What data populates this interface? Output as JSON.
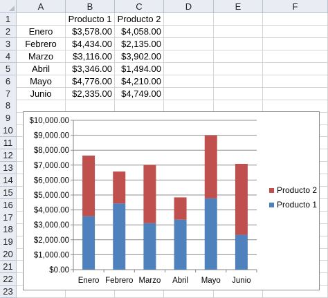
{
  "sheet": {
    "columns": [
      "A",
      "B",
      "C",
      "D",
      "E",
      "F"
    ],
    "rows": [
      "1",
      "2",
      "3",
      "4",
      "5",
      "6",
      "7",
      "8",
      "9",
      "10",
      "11",
      "12",
      "13",
      "14",
      "15",
      "16",
      "17",
      "18",
      "19",
      "20",
      "21",
      "22",
      "23"
    ],
    "header_row": [
      "",
      "Producto 1",
      "Producto 2"
    ],
    "data_rows": [
      [
        "Enero",
        "$3,578.00",
        "$4,058.00"
      ],
      [
        "Febrero",
        "$4,434.00",
        "$2,135.00"
      ],
      [
        "Marzo",
        "$3,116.00",
        "$3,902.00"
      ],
      [
        "Abril",
        "$3,346.00",
        "$1,494.00"
      ],
      [
        "Mayo",
        "$4,776.00",
        "$4,210.00"
      ],
      [
        "Junio",
        "$2,335.00",
        "$4,749.00"
      ]
    ]
  },
  "chart_data": {
    "type": "bar",
    "stacked": true,
    "categories": [
      "Enero",
      "Febrero",
      "Marzo",
      "Abril",
      "Mayo",
      "Junio"
    ],
    "series": [
      {
        "name": "Producto 1",
        "color": "#4f81bd",
        "values": [
          3578,
          4434,
          3116,
          3346,
          4776,
          2335
        ]
      },
      {
        "name": "Producto 2",
        "color": "#c0504d",
        "values": [
          4058,
          2135,
          3902,
          1494,
          4210,
          4749
        ]
      }
    ],
    "ylim": [
      0,
      10000
    ],
    "yticks": [
      0,
      1000,
      2000,
      3000,
      4000,
      5000,
      6000,
      7000,
      8000,
      9000,
      10000
    ],
    "ytick_labels": [
      "$0.00",
      "$1,000.00",
      "$2,000.00",
      "$3,000.00",
      "$4,000.00",
      "$5,000.00",
      "$6,000.00",
      "$7,000.00",
      "$8,000.00",
      "$9,000.00",
      "$10,000.00"
    ],
    "grid": true,
    "legend": "right",
    "legend_order": [
      "Producto 2",
      "Producto 1"
    ]
  }
}
